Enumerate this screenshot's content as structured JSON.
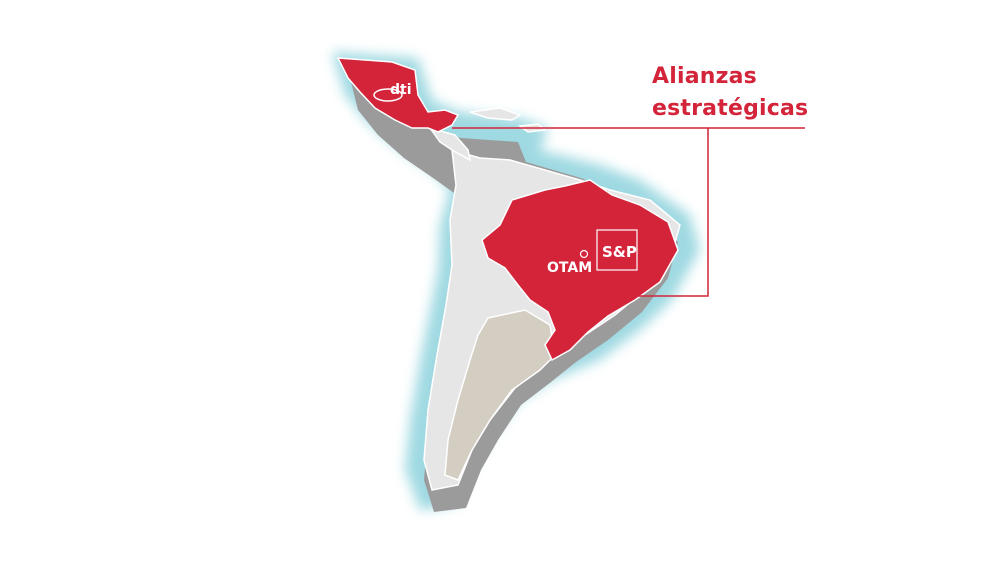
{
  "title": {
    "line1": "Alianzas",
    "line2": "estratégicas"
  },
  "colors": {
    "highlight": "#d3243a",
    "glow": "#8fd3dd",
    "land_light": "#e6e6e6",
    "land_beige": "#d3cdc2",
    "land_shadow": "#9b9b9b",
    "border": "#ffffff"
  },
  "logos": {
    "mexico": {
      "text": "dti"
    },
    "brazil_1": {
      "text": "OTAM"
    },
    "brazil_2": {
      "text": "S&P"
    }
  },
  "highlighted_regions": [
    "Mexico",
    "Brazil"
  ]
}
